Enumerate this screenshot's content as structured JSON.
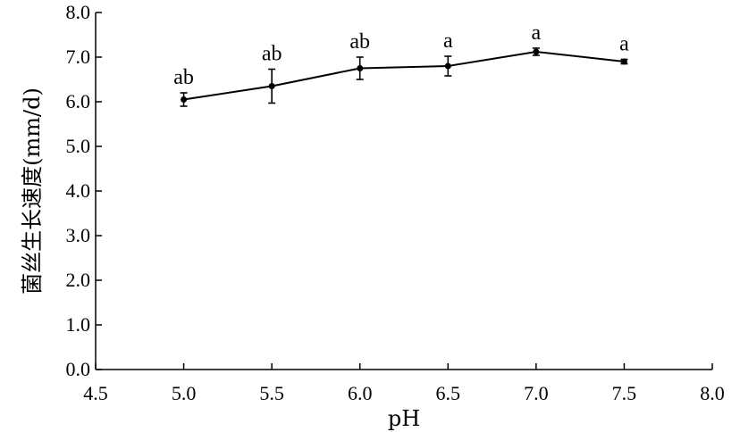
{
  "chart_data": {
    "type": "line",
    "xlabel": "pH",
    "ylabel": "菌丝生长速度(mm/d)",
    "xlim": [
      4.5,
      8.0
    ],
    "ylim": [
      0.0,
      8.0
    ],
    "x_ticks": [
      "4.5",
      "5.0",
      "5.5",
      "6.0",
      "6.5",
      "7.0",
      "7.5",
      "8.0"
    ],
    "y_ticks": [
      "0.0",
      "1.0",
      "2.0",
      "3.0",
      "4.0",
      "5.0",
      "6.0",
      "7.0",
      "8.0"
    ],
    "grid": false,
    "series": [
      {
        "x": [
          5.0,
          5.5,
          6.0,
          6.5,
          7.0,
          7.5
        ],
        "y": [
          6.05,
          6.35,
          6.75,
          6.8,
          7.12,
          6.9
        ],
        "error": [
          0.15,
          0.38,
          0.25,
          0.22,
          0.08,
          0.05
        ],
        "labels": [
          "ab",
          "ab",
          "ab",
          "a",
          "a",
          "a"
        ]
      }
    ]
  }
}
